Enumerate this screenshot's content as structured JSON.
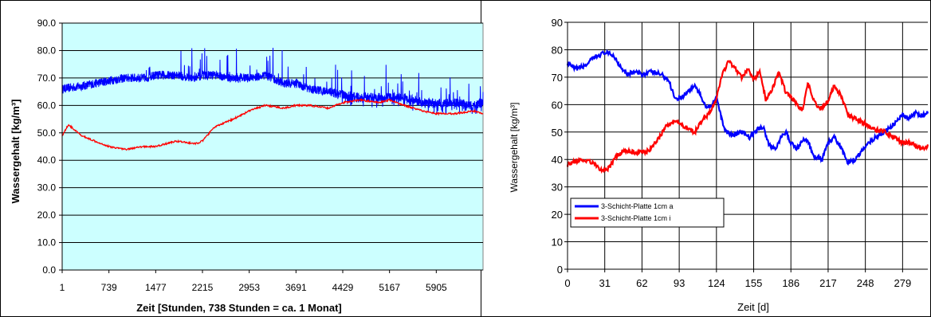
{
  "chart_data": [
    {
      "type": "line",
      "title": "",
      "xlabel": "Zeit  [Stunden, 738 Stunden = ca. 1 Monat]",
      "ylabel": "Wassergehalt   [kg/m³]",
      "ylim": [
        0,
        90
      ],
      "xlim": [
        1,
        6643
      ],
      "y_ticks": [
        "0.0",
        "10.0",
        "20.0",
        "30.0",
        "40.0",
        "50.0",
        "60.0",
        "70.0",
        "80.0",
        "90.0"
      ],
      "x_ticks": [
        1,
        739,
        1477,
        2215,
        2953,
        3691,
        4429,
        5167,
        5905
      ],
      "grid": "horizontal",
      "plot_background": "#ccffff",
      "series": [
        {
          "color": "#0000ff",
          "x": [
            1,
            300,
            739,
            1000,
            1300,
            1477,
            1800,
            2100,
            2215,
            2400,
            2700,
            2953,
            3200,
            3500,
            3691,
            3900,
            4200,
            4429,
            4700,
            5000,
            5167,
            5400,
            5700,
            5905,
            6200,
            6500,
            6643
          ],
          "values": [
            66,
            67,
            69,
            70,
            70,
            71,
            71,
            70,
            71,
            71,
            70,
            70,
            71,
            68,
            68,
            66,
            65,
            64,
            63,
            63,
            63,
            63,
            61,
            61,
            61,
            60,
            61
          ]
        },
        {
          "color": "#ff0000",
          "x": [
            1,
            100,
            300,
            739,
            1000,
            1300,
            1477,
            1800,
            2100,
            2215,
            2400,
            2700,
            2953,
            3200,
            3500,
            3691,
            3900,
            4200,
            4429,
            4700,
            5000,
            5167,
            5400,
            5700,
            5905,
            6200,
            6500,
            6643
          ],
          "values": [
            49,
            53,
            49,
            45,
            44,
            45,
            45,
            47,
            46,
            47,
            52,
            55,
            58,
            60,
            59,
            60,
            60,
            59,
            61,
            62,
            61,
            62,
            60,
            58,
            57,
            57,
            58,
            57
          ]
        }
      ]
    },
    {
      "type": "line",
      "title": "",
      "xlabel": "Zeit [d]",
      "ylabel": "Wassergehalt [kg/m³]",
      "ylim": [
        0,
        90
      ],
      "xlim": [
        0,
        300
      ],
      "y_ticks": [
        "0",
        "10",
        "20",
        "30",
        "40",
        "50",
        "60",
        "70",
        "80",
        "90"
      ],
      "x_ticks": [
        "0",
        "31",
        "62",
        "93",
        "124",
        "155",
        "186",
        "217",
        "248",
        "279"
      ],
      "grid": "both",
      "legend_position": "lower-left",
      "series": [
        {
          "name": "3-Schicht-Platte   1cm a",
          "color": "#0000ff",
          "x": [
            0,
            6,
            14,
            22,
            31,
            38,
            44,
            50,
            55,
            62,
            70,
            78,
            84,
            90,
            96,
            101,
            106,
            111,
            116,
            120,
            124,
            128,
            132,
            138,
            145,
            152,
            158,
            163,
            168,
            173,
            178,
            182,
            186,
            191,
            196,
            200,
            205,
            212,
            217,
            222,
            227,
            233,
            240,
            248,
            256,
            264,
            272,
            279,
            285,
            290,
            296,
            300
          ],
          "values": [
            75,
            73,
            74,
            77,
            79,
            78,
            74,
            71,
            72,
            71,
            72,
            71,
            69,
            62,
            63,
            65,
            67,
            63,
            59,
            60,
            63,
            55,
            50,
            49,
            50,
            48,
            51,
            52,
            45,
            44,
            48,
            50,
            46,
            44,
            47,
            47,
            41,
            40,
            46,
            48,
            45,
            39,
            40,
            45,
            48,
            50,
            53,
            56,
            55,
            57,
            56,
            57
          ]
        },
        {
          "name": "3-Schicht-Platte    1cm i",
          "color": "#ff0000",
          "x": [
            0,
            5,
            10,
            20,
            26,
            31,
            35,
            40,
            46,
            52,
            58,
            62,
            68,
            75,
            82,
            88,
            93,
            100,
            106,
            112,
            118,
            124,
            128,
            134,
            140,
            145,
            150,
            155,
            160,
            165,
            170,
            176,
            182,
            186,
            191,
            196,
            200,
            205,
            210,
            217,
            222,
            228,
            234,
            240,
            248,
            256,
            264,
            272,
            279,
            285,
            290,
            296,
            300
          ],
          "values": [
            38,
            39,
            40,
            39,
            37,
            36,
            37,
            41,
            43,
            43,
            42,
            43,
            43,
            47,
            52,
            54,
            53,
            51,
            50,
            54,
            57,
            62,
            70,
            76,
            73,
            70,
            73,
            69,
            72,
            62,
            65,
            72,
            64,
            63,
            60,
            58,
            68,
            62,
            58,
            61,
            67,
            63,
            56,
            55,
            53,
            51,
            50,
            48,
            46,
            46,
            45,
            44,
            45
          ]
        }
      ]
    }
  ]
}
